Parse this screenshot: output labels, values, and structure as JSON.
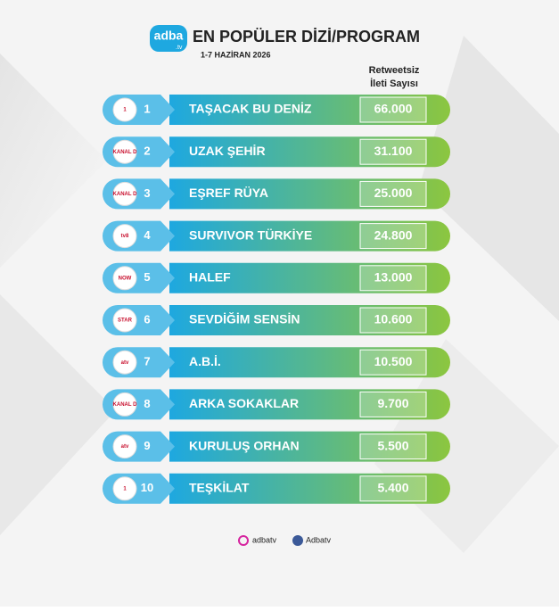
{
  "header": {
    "logo": "adba",
    "logo_suffix": ".tv",
    "title": "EN POPÜLER DİZİ/PROGRAM",
    "subtitle": "1-7 HAZİRAN 2026"
  },
  "column_header": [
    "Retweetsiz",
    "İleti Sayısı"
  ],
  "rows": [
    {
      "rank": 1,
      "channel": "1",
      "title": "TAŞACAK BU DENİZ",
      "value": "66.000"
    },
    {
      "rank": 2,
      "channel": "KANAL D",
      "title": "UZAK ŞEHİR",
      "value": "31.100"
    },
    {
      "rank": 3,
      "channel": "KANAL D",
      "title": "EŞREF RÜYA",
      "value": "25.000"
    },
    {
      "rank": 4,
      "channel": "tv8",
      "title": "SURVIVOR TÜRKİYE",
      "value": "24.800"
    },
    {
      "rank": 5,
      "channel": "NOW",
      "title": "HALEF",
      "value": "13.000"
    },
    {
      "rank": 6,
      "channel": "STAR",
      "title": "SEVDİĞİM SENSİN",
      "value": "10.600"
    },
    {
      "rank": 7,
      "channel": "atv",
      "title": "A.B.İ.",
      "value": "10.500"
    },
    {
      "rank": 8,
      "channel": "KANAL D",
      "title": "ARKA SOKAKLAR",
      "value": "9.700"
    },
    {
      "rank": 9,
      "channel": "atv",
      "title": "KURULUŞ ORHAN",
      "value": "5.500"
    },
    {
      "rank": 10,
      "channel": "1",
      "title": "TEŞKİLAT",
      "value": "5.400"
    }
  ],
  "footer": {
    "instagram": "adbatv",
    "facebook": "Adbatv"
  }
}
